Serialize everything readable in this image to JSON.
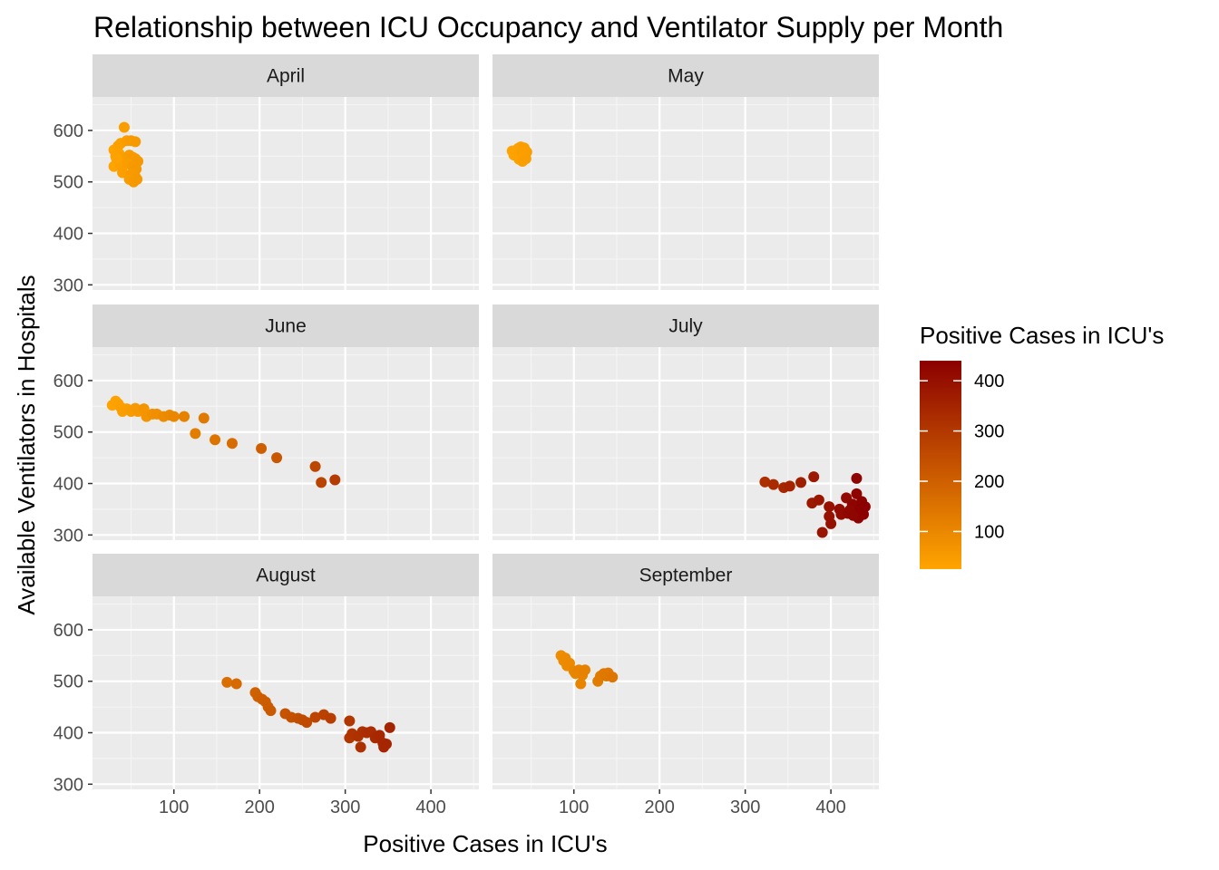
{
  "chart_data": {
    "type": "scatter",
    "title": "Relationship between ICU Occupancy and Ventilator Supply per Month",
    "xlabel": "Positive Cases in ICU's",
    "ylabel": "Available Ventilators in Hospitals",
    "xlim": [
      5,
      456
    ],
    "ylim": [
      290,
      665
    ],
    "x_ticks": [
      100,
      200,
      300,
      400
    ],
    "y_ticks": [
      300,
      400,
      500,
      600
    ],
    "grid": true,
    "facet_layout": {
      "rows": 3,
      "cols": 2
    },
    "color_scale": {
      "title": "Positive Cases in ICU's",
      "low_color": "#ffa500",
      "high_color": "#8b0000",
      "min": 25,
      "max": 440,
      "ticks": [
        100,
        200,
        300,
        400
      ],
      "legend_position": "right"
    },
    "panels": [
      {
        "label": "April",
        "points": [
          {
            "x": 42,
            "y": 606
          },
          {
            "x": 30,
            "y": 562
          },
          {
            "x": 35,
            "y": 570
          },
          {
            "x": 38,
            "y": 575
          },
          {
            "x": 45,
            "y": 580
          },
          {
            "x": 50,
            "y": 580
          },
          {
            "x": 55,
            "y": 578
          },
          {
            "x": 32,
            "y": 550
          },
          {
            "x": 36,
            "y": 555
          },
          {
            "x": 40,
            "y": 548
          },
          {
            "x": 44,
            "y": 545
          },
          {
            "x": 48,
            "y": 552
          },
          {
            "x": 52,
            "y": 548
          },
          {
            "x": 55,
            "y": 545
          },
          {
            "x": 58,
            "y": 540
          },
          {
            "x": 35,
            "y": 540
          },
          {
            "x": 30,
            "y": 530
          },
          {
            "x": 38,
            "y": 532
          },
          {
            "x": 46,
            "y": 535
          },
          {
            "x": 52,
            "y": 530
          },
          {
            "x": 56,
            "y": 525
          },
          {
            "x": 40,
            "y": 518
          },
          {
            "x": 50,
            "y": 515
          },
          {
            "x": 55,
            "y": 510
          },
          {
            "x": 48,
            "y": 505
          },
          {
            "x": 53,
            "y": 500
          },
          {
            "x": 57,
            "y": 505
          },
          {
            "x": 33,
            "y": 545
          }
        ]
      },
      {
        "label": "May",
        "points": [
          {
            "x": 28,
            "y": 560
          },
          {
            "x": 32,
            "y": 556
          },
          {
            "x": 35,
            "y": 565
          },
          {
            "x": 38,
            "y": 568
          },
          {
            "x": 42,
            "y": 566
          },
          {
            "x": 45,
            "y": 558
          },
          {
            "x": 30,
            "y": 552
          },
          {
            "x": 34,
            "y": 550
          },
          {
            "x": 38,
            "y": 548
          },
          {
            "x": 42,
            "y": 552
          },
          {
            "x": 36,
            "y": 544
          },
          {
            "x": 40,
            "y": 540
          },
          {
            "x": 44,
            "y": 545
          },
          {
            "x": 32,
            "y": 560
          },
          {
            "x": 39,
            "y": 558
          }
        ]
      },
      {
        "label": "June",
        "points": [
          {
            "x": 28,
            "y": 552
          },
          {
            "x": 32,
            "y": 560
          },
          {
            "x": 35,
            "y": 555
          },
          {
            "x": 38,
            "y": 548
          },
          {
            "x": 40,
            "y": 540
          },
          {
            "x": 45,
            "y": 545
          },
          {
            "x": 50,
            "y": 540
          },
          {
            "x": 55,
            "y": 546
          },
          {
            "x": 58,
            "y": 540
          },
          {
            "x": 65,
            "y": 545
          },
          {
            "x": 68,
            "y": 530
          },
          {
            "x": 75,
            "y": 535
          },
          {
            "x": 80,
            "y": 535
          },
          {
            "x": 88,
            "y": 530
          },
          {
            "x": 95,
            "y": 533
          },
          {
            "x": 100,
            "y": 530
          },
          {
            "x": 112,
            "y": 530
          },
          {
            "x": 135,
            "y": 527
          },
          {
            "x": 125,
            "y": 497
          },
          {
            "x": 148,
            "y": 485
          },
          {
            "x": 168,
            "y": 478
          },
          {
            "x": 202,
            "y": 468
          },
          {
            "x": 220,
            "y": 450
          },
          {
            "x": 265,
            "y": 433
          },
          {
            "x": 272,
            "y": 402
          },
          {
            "x": 288,
            "y": 407
          }
        ]
      },
      {
        "label": "July",
        "points": [
          {
            "x": 323,
            "y": 403
          },
          {
            "x": 333,
            "y": 398
          },
          {
            "x": 345,
            "y": 392
          },
          {
            "x": 352,
            "y": 395
          },
          {
            "x": 365,
            "y": 402
          },
          {
            "x": 380,
            "y": 413
          },
          {
            "x": 378,
            "y": 362
          },
          {
            "x": 386,
            "y": 368
          },
          {
            "x": 390,
            "y": 305
          },
          {
            "x": 398,
            "y": 355
          },
          {
            "x": 398,
            "y": 336
          },
          {
            "x": 400,
            "y": 322
          },
          {
            "x": 410,
            "y": 350
          },
          {
            "x": 412,
            "y": 340
          },
          {
            "x": 418,
            "y": 372
          },
          {
            "x": 420,
            "y": 342
          },
          {
            "x": 425,
            "y": 360
          },
          {
            "x": 428,
            "y": 355
          },
          {
            "x": 430,
            "y": 410
          },
          {
            "x": 430,
            "y": 380
          },
          {
            "x": 432,
            "y": 333
          },
          {
            "x": 434,
            "y": 350
          },
          {
            "x": 436,
            "y": 365
          },
          {
            "x": 438,
            "y": 340
          },
          {
            "x": 440,
            "y": 355
          },
          {
            "x": 422,
            "y": 348
          },
          {
            "x": 426,
            "y": 338
          }
        ]
      },
      {
        "label": "August",
        "points": [
          {
            "x": 162,
            "y": 498
          },
          {
            "x": 173,
            "y": 495
          },
          {
            "x": 195,
            "y": 478
          },
          {
            "x": 198,
            "y": 470
          },
          {
            "x": 203,
            "y": 465
          },
          {
            "x": 207,
            "y": 460
          },
          {
            "x": 210,
            "y": 450
          },
          {
            "x": 213,
            "y": 443
          },
          {
            "x": 230,
            "y": 437
          },
          {
            "x": 237,
            "y": 430
          },
          {
            "x": 245,
            "y": 428
          },
          {
            "x": 250,
            "y": 425
          },
          {
            "x": 255,
            "y": 420
          },
          {
            "x": 265,
            "y": 430
          },
          {
            "x": 275,
            "y": 435
          },
          {
            "x": 283,
            "y": 428
          },
          {
            "x": 305,
            "y": 423
          },
          {
            "x": 305,
            "y": 390
          },
          {
            "x": 308,
            "y": 398
          },
          {
            "x": 315,
            "y": 393
          },
          {
            "x": 318,
            "y": 372
          },
          {
            "x": 320,
            "y": 402
          },
          {
            "x": 325,
            "y": 400
          },
          {
            "x": 330,
            "y": 402
          },
          {
            "x": 335,
            "y": 390
          },
          {
            "x": 340,
            "y": 395
          },
          {
            "x": 344,
            "y": 380
          },
          {
            "x": 345,
            "y": 372
          },
          {
            "x": 348,
            "y": 378
          },
          {
            "x": 352,
            "y": 410
          }
        ]
      },
      {
        "label": "September",
        "points": [
          {
            "x": 85,
            "y": 550
          },
          {
            "x": 88,
            "y": 540
          },
          {
            "x": 90,
            "y": 545
          },
          {
            "x": 92,
            "y": 530
          },
          {
            "x": 95,
            "y": 535
          },
          {
            "x": 100,
            "y": 520
          },
          {
            "x": 102,
            "y": 515
          },
          {
            "x": 106,
            "y": 522
          },
          {
            "x": 108,
            "y": 495
          },
          {
            "x": 110,
            "y": 512
          },
          {
            "x": 113,
            "y": 522
          },
          {
            "x": 128,
            "y": 500
          },
          {
            "x": 131,
            "y": 510
          },
          {
            "x": 135,
            "y": 515
          },
          {
            "x": 138,
            "y": 510
          },
          {
            "x": 140,
            "y": 516
          },
          {
            "x": 145,
            "y": 508
          }
        ]
      }
    ]
  }
}
